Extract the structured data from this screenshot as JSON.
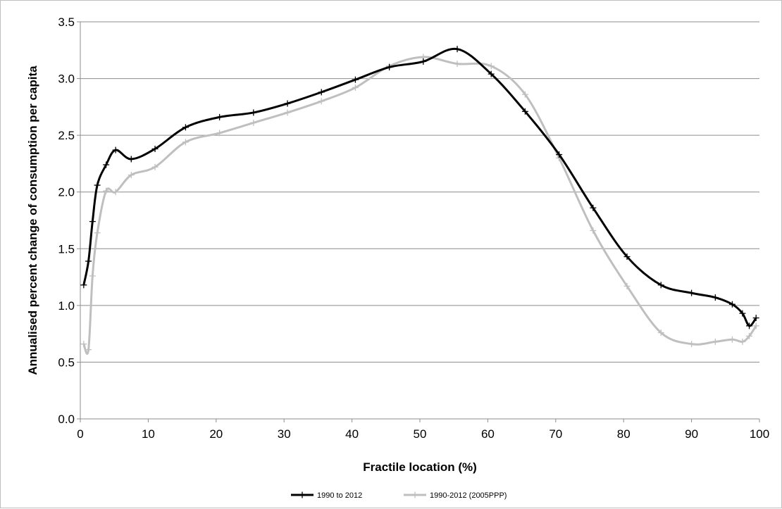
{
  "chart_data": {
    "type": "line",
    "title": "",
    "xlabel": "Fractile location (%)",
    "ylabel": "Annualised percent change of  consumption per capita",
    "xlim": [
      0,
      100
    ],
    "ylim": [
      0,
      3.5
    ],
    "xticks": [
      "0",
      "10",
      "20",
      "30",
      "40",
      "50",
      "60",
      "70",
      "80",
      "90",
      "100"
    ],
    "yticks": [
      "0.0",
      "0.5",
      "1.0",
      "1.5",
      "2.0",
      "2.5",
      "3.0",
      "3.5"
    ],
    "grid": "horizontal",
    "legend_position": "bottom",
    "series": [
      {
        "name": "1990 to 2012",
        "color": "#000000",
        "x": [
          0.5,
          1.2,
          1.8,
          2.5,
          3.8,
          5.2,
          7.5,
          11,
          15.5,
          20.5,
          25.5,
          30.5,
          35.5,
          40.5,
          45.5,
          50.5,
          55.5,
          60.5,
          65.5,
          70.5,
          75.5,
          80.5,
          85.5,
          90,
          93.5,
          96,
          97.5,
          98.5,
          99.5
        ],
        "y": [
          1.18,
          1.39,
          1.74,
          2.06,
          2.24,
          2.37,
          2.29,
          2.38,
          2.57,
          2.66,
          2.7,
          2.78,
          2.88,
          2.99,
          3.1,
          3.15,
          3.26,
          3.04,
          2.71,
          2.33,
          1.86,
          1.43,
          1.18,
          1.11,
          1.07,
          1.01,
          0.93,
          0.82,
          0.89
        ]
      },
      {
        "name": "1990-2012 (2005PPP)",
        "color": "#bfbfbf",
        "x": [
          0.5,
          1.2,
          1.8,
          2.5,
          3.8,
          5.2,
          7.5,
          11,
          15.5,
          20.5,
          25.5,
          30.5,
          35.5,
          40.5,
          45.5,
          50.5,
          55.5,
          60.5,
          65.5,
          70.5,
          75.5,
          80.5,
          85.5,
          90,
          93.5,
          96,
          97.5,
          98.5,
          99.5
        ],
        "y": [
          0.66,
          0.61,
          1.26,
          1.64,
          2.01,
          2.0,
          2.15,
          2.22,
          2.44,
          2.52,
          2.61,
          2.7,
          2.8,
          2.92,
          3.11,
          3.19,
          3.13,
          3.11,
          2.86,
          2.3,
          1.66,
          1.17,
          0.76,
          0.66,
          0.68,
          0.7,
          0.68,
          0.73,
          0.82
        ]
      }
    ]
  }
}
